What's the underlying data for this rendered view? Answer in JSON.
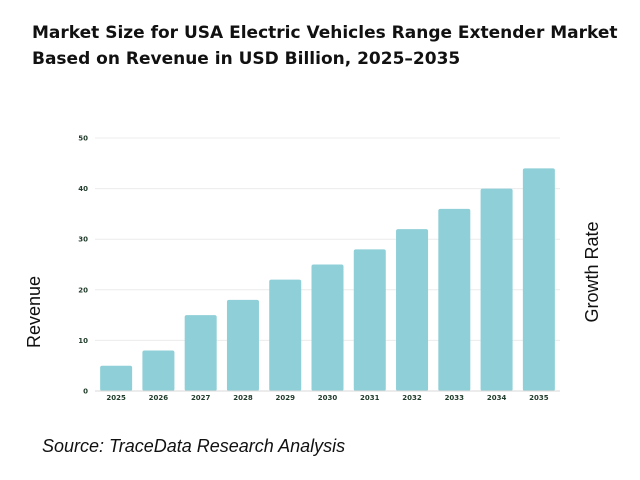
{
  "title_line1": "Market Size for USA Electric Vehicles Range Extender Market",
  "title_line2": "Based on Revenue in USD Billion, 2025–2035",
  "source": "Source: TraceData Research Analysis",
  "colors": {
    "bar": "#8ecfd8",
    "tick_text": "#1f3b2a",
    "grid": "#ececec"
  },
  "chart_data": {
    "type": "bar",
    "title": "Market Size for USA Electric Vehicles Range Extender Market Based on Revenue in USD Billion, 2025–2035",
    "xlabel": "",
    "ylabel": "Revenue",
    "y2label": "Growth Rate",
    "categories": [
      "2025",
      "2026",
      "2027",
      "2028",
      "2029",
      "2030",
      "2031",
      "2032",
      "2033",
      "2034",
      "2035"
    ],
    "values": [
      5,
      8,
      15,
      18,
      22,
      25,
      28,
      32,
      36,
      40,
      44
    ],
    "ylim": [
      0,
      50
    ],
    "yticks": [
      0,
      10,
      20,
      30,
      40,
      50
    ],
    "grid": true
  }
}
